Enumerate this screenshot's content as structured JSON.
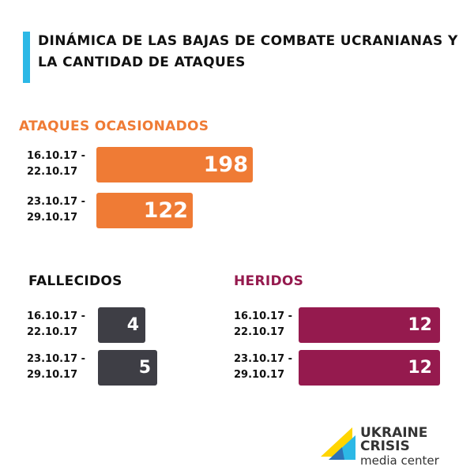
{
  "title": {
    "line1": "Dinámica de las bajas de combate ucranianas y",
    "line2": "la cantidad de ataques"
  },
  "colors": {
    "accent": "#2cb8e6",
    "attacks": "#ef7b35",
    "killed": "#3e3e45",
    "wounded": "#951a4e"
  },
  "chart_data": [
    {
      "type": "bar",
      "title": "ATAQUES OCASIONADOS",
      "categories": [
        "16.10.17 - 22.10.17",
        "23.10.17 - 29.10.17"
      ],
      "category_lines": [
        [
          "16.10.17 -",
          "22.10.17"
        ],
        [
          "23.10.17 -",
          "29.10.17"
        ]
      ],
      "values": [
        198,
        122
      ],
      "max": 198,
      "color": "#ef7b35"
    },
    {
      "type": "bar",
      "title": "FALLECIDOS",
      "categories": [
        "16.10.17 - 22.10.17",
        "23.10.17 - 29.10.17"
      ],
      "category_lines": [
        [
          "16.10.17 -",
          "22.10.17"
        ],
        [
          "23.10.17 -",
          "29.10.17"
        ]
      ],
      "values": [
        4,
        5
      ],
      "max": 5,
      "color": "#3e3e45"
    },
    {
      "type": "bar",
      "title": "HERIDOS",
      "categories": [
        "16.10.17 - 22.10.17",
        "23.10.17 - 29.10.17"
      ],
      "category_lines": [
        [
          "16.10.17 -",
          "22.10.17"
        ],
        [
          "23.10.17 -",
          "29.10.17"
        ]
      ],
      "values": [
        12,
        12
      ],
      "max": 12,
      "color": "#951a4e"
    }
  ],
  "logo": {
    "line1": "UKRAINE CRISIS",
    "line2": "media center",
    "colors": [
      "#ffd500",
      "#2cb8e6",
      "#2d73b8"
    ]
  }
}
